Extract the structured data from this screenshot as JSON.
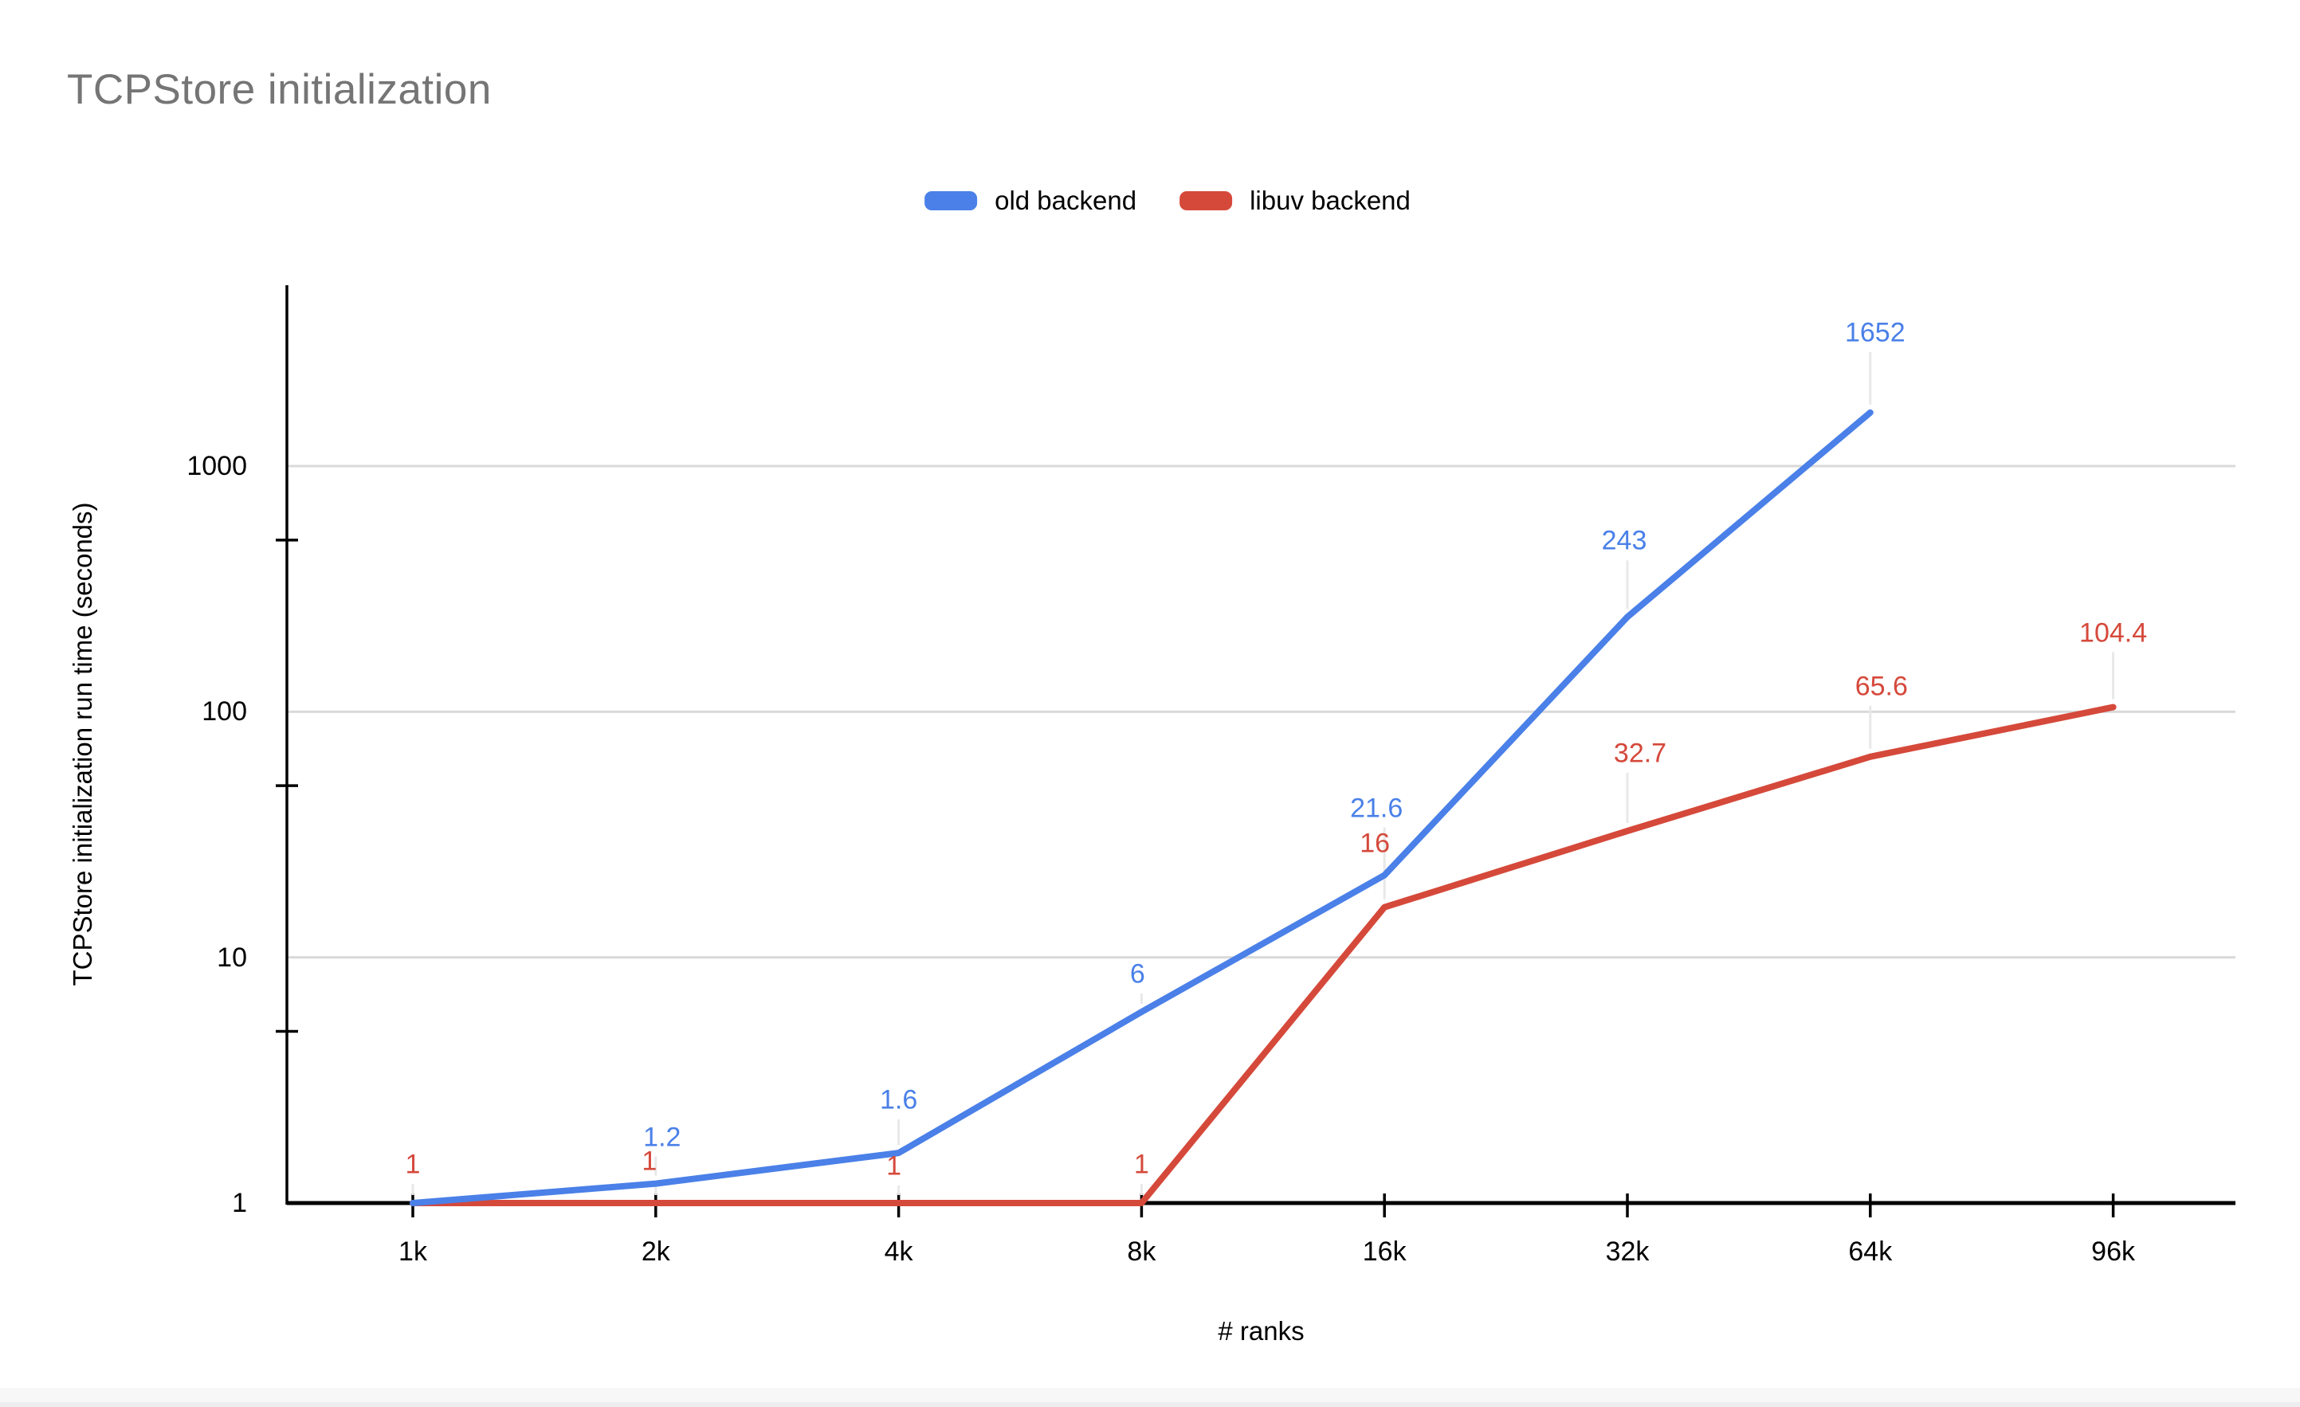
{
  "title": "TCPStore initialization",
  "colors": {
    "blue": "#4a80e8",
    "red": "#d5493b",
    "title_gray": "#757575",
    "gridline": "#d9d9d9",
    "axis": "#000000",
    "leader": "#e8e8e8",
    "text": "#000000",
    "bottom_band": "#f7f7f8"
  },
  "chart_data": {
    "type": "line",
    "title": "TCPStore initialization",
    "xlabel": "# ranks",
    "ylabel": "TCPStore initialization run time (seconds)",
    "x_categories": [
      "1k",
      "2k",
      "4k",
      "8k",
      "16k",
      "32k",
      "64k",
      "96k"
    ],
    "y_scale": "log",
    "y_ticks": [
      1,
      10,
      100,
      1000
    ],
    "ylim": [
      1,
      4500
    ],
    "grid": true,
    "legend_position": "top",
    "series": [
      {
        "name": "old backend",
        "color": "#4a80e8",
        "values": [
          1,
          1.2,
          1.6,
          6,
          21.6,
          243,
          1652,
          null
        ],
        "labels": [
          "",
          "1.2",
          "1.6",
          "6",
          "21.6",
          "243",
          "1652",
          ""
        ]
      },
      {
        "name": "libuv backend",
        "color": "#d5493b",
        "values": [
          1,
          1,
          1,
          1,
          16,
          32.7,
          65.6,
          104.4
        ],
        "labels": [
          "1",
          "1",
          "1",
          "1",
          "16",
          "32.7",
          "65.6",
          "104.4"
        ]
      }
    ]
  }
}
